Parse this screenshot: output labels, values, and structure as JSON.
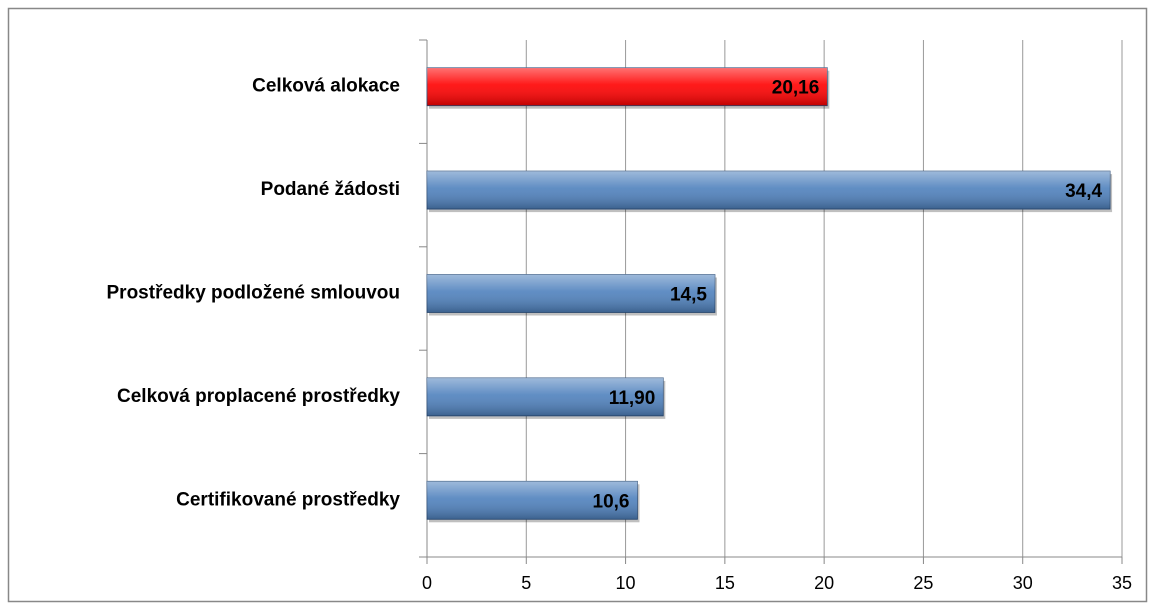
{
  "chart_data": {
    "type": "barh",
    "categories": [
      "Celková alokace",
      "Podané žádosti",
      "Prostředky podložené smlouvou",
      "Celková proplacené prostředky",
      "Certifikované prostředky"
    ],
    "values": [
      20.16,
      34.4,
      14.5,
      11.9,
      10.6
    ],
    "value_labels": [
      "20,16",
      "34,4",
      "14,5",
      "11,90",
      "10,6"
    ],
    "colors": [
      "#ff0000",
      "#4f81bd",
      "#4f81bd",
      "#4f81bd",
      "#4f81bd"
    ],
    "xlim": [
      0,
      35
    ],
    "xticks": [
      0,
      5,
      10,
      15,
      20,
      25,
      30,
      35
    ],
    "grid": true
  }
}
